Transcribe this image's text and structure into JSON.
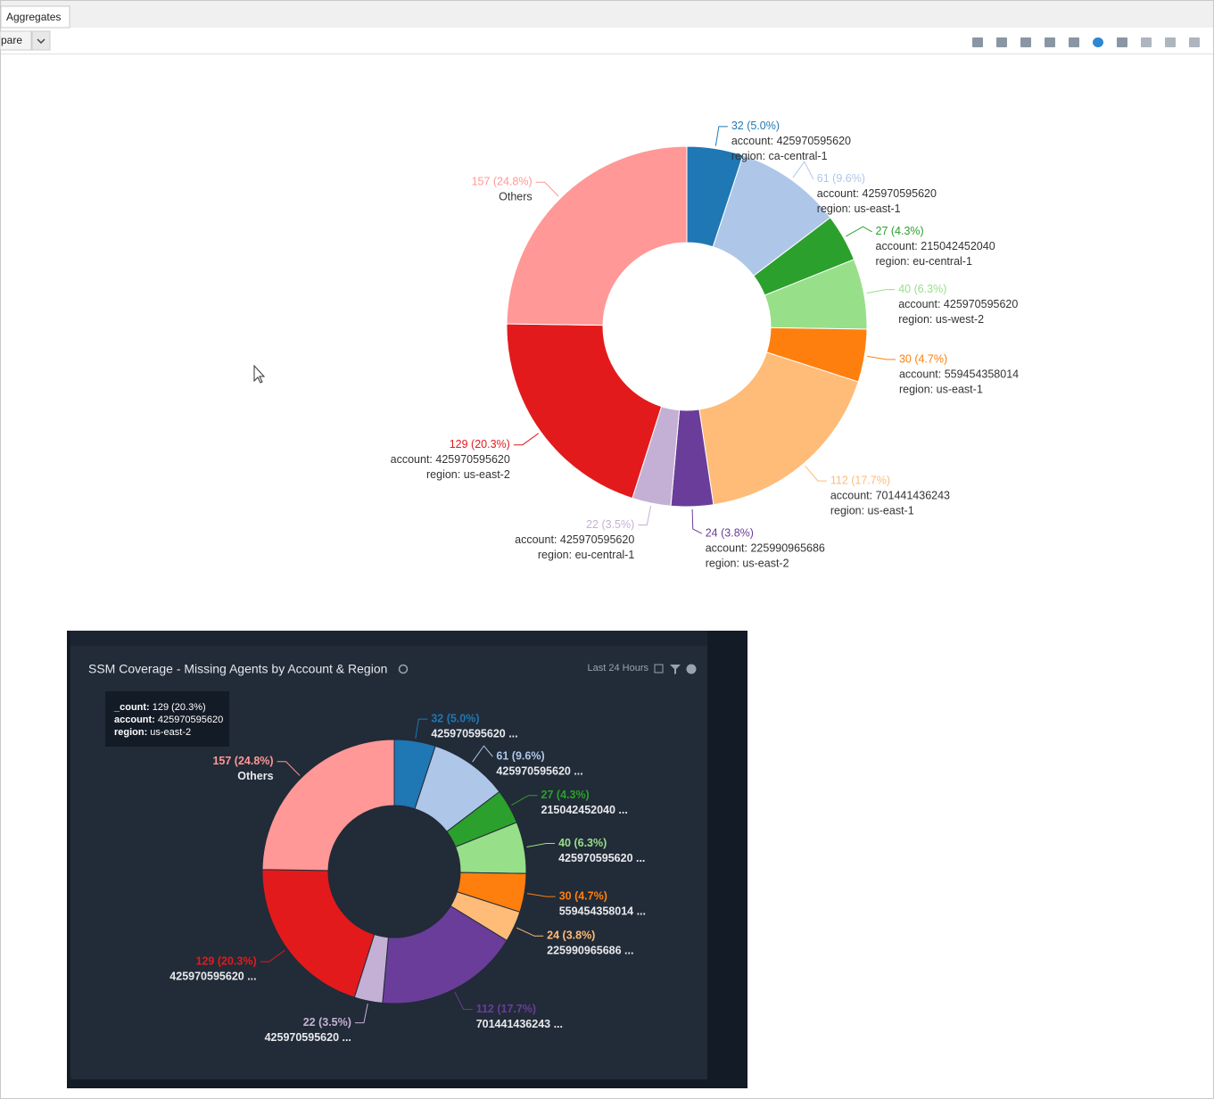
{
  "ui": {
    "tab": "Aggregates",
    "dropdown": "pare",
    "time_range": "Last 24 Hours",
    "tooltip": [
      {
        "key": "_count:",
        "value": "129 (20.3%)"
      },
      {
        "key": "account:",
        "value": "425970595620"
      },
      {
        "key": "region:",
        "value": "us-east-2"
      }
    ]
  },
  "chart_data": [
    {
      "type": "donut",
      "values": [
        32,
        61,
        27,
        40,
        30,
        112,
        24,
        22,
        129,
        157
      ],
      "value_labels": [
        "32 (5.0%)",
        "61 (9.6%)",
        "27 (4.3%)",
        "40 (6.3%)",
        "30 (4.7%)",
        "112 (17.7%)",
        "24 (3.8%)",
        "22 (3.5%)",
        "129 (20.3%)",
        "157 (24.8%)"
      ],
      "details": [
        [
          "account: 425970595620",
          "region: ca-central-1"
        ],
        [
          "account: 425970595620",
          "region: us-east-1"
        ],
        [
          "account: 215042452040",
          "region: eu-central-1"
        ],
        [
          "account: 425970595620",
          "region: us-west-2"
        ],
        [
          "account: 559454358014",
          "region: us-east-1"
        ],
        [
          "account: 701441436243",
          "region: us-east-1"
        ],
        [
          "account: 225990965686",
          "region: us-east-2"
        ],
        [
          "account: 425970595620",
          "region: eu-central-1"
        ],
        [
          "account: 425970595620",
          "region: us-east-2"
        ],
        [
          "Others"
        ]
      ],
      "colors": [
        "#1f77b4",
        "#aec7e8",
        "#2ca02c",
        "#98df8a",
        "#ff7f0e",
        "#ffbb78",
        "#6a3d9a",
        "#c5b0d5",
        "#e31a1c",
        "#ff9896"
      ]
    },
    {
      "type": "donut",
      "title": "SSM Coverage - Missing Agents by Account & Region",
      "values": [
        32,
        61,
        27,
        40,
        30,
        24,
        112,
        22,
        129,
        157
      ],
      "value_labels": [
        "32 (5.0%)",
        "61 (9.6%)",
        "27 (4.3%)",
        "40 (6.3%)",
        "30 (4.7%)",
        "24 (3.8%)",
        "112 (17.7%)",
        "22 (3.5%)",
        "129 (20.3%)",
        "157 (24.8%)"
      ],
      "details": [
        [
          "425970595620 ..."
        ],
        [
          "425970595620 ..."
        ],
        [
          "215042452040 ..."
        ],
        [
          "425970595620 ..."
        ],
        [
          "559454358014 ..."
        ],
        [
          "225990965686 ..."
        ],
        [
          "701441436243 ..."
        ],
        [
          "425970595620 ..."
        ],
        [
          "425970595620 ..."
        ],
        [
          "Others"
        ]
      ],
      "colors": [
        "#1f77b4",
        "#aec7e8",
        "#2ca02c",
        "#98df8a",
        "#ff7f0e",
        "#ffbb78",
        "#6a3d9a",
        "#c5b0d5",
        "#e31a1c",
        "#ff9896"
      ]
    }
  ]
}
